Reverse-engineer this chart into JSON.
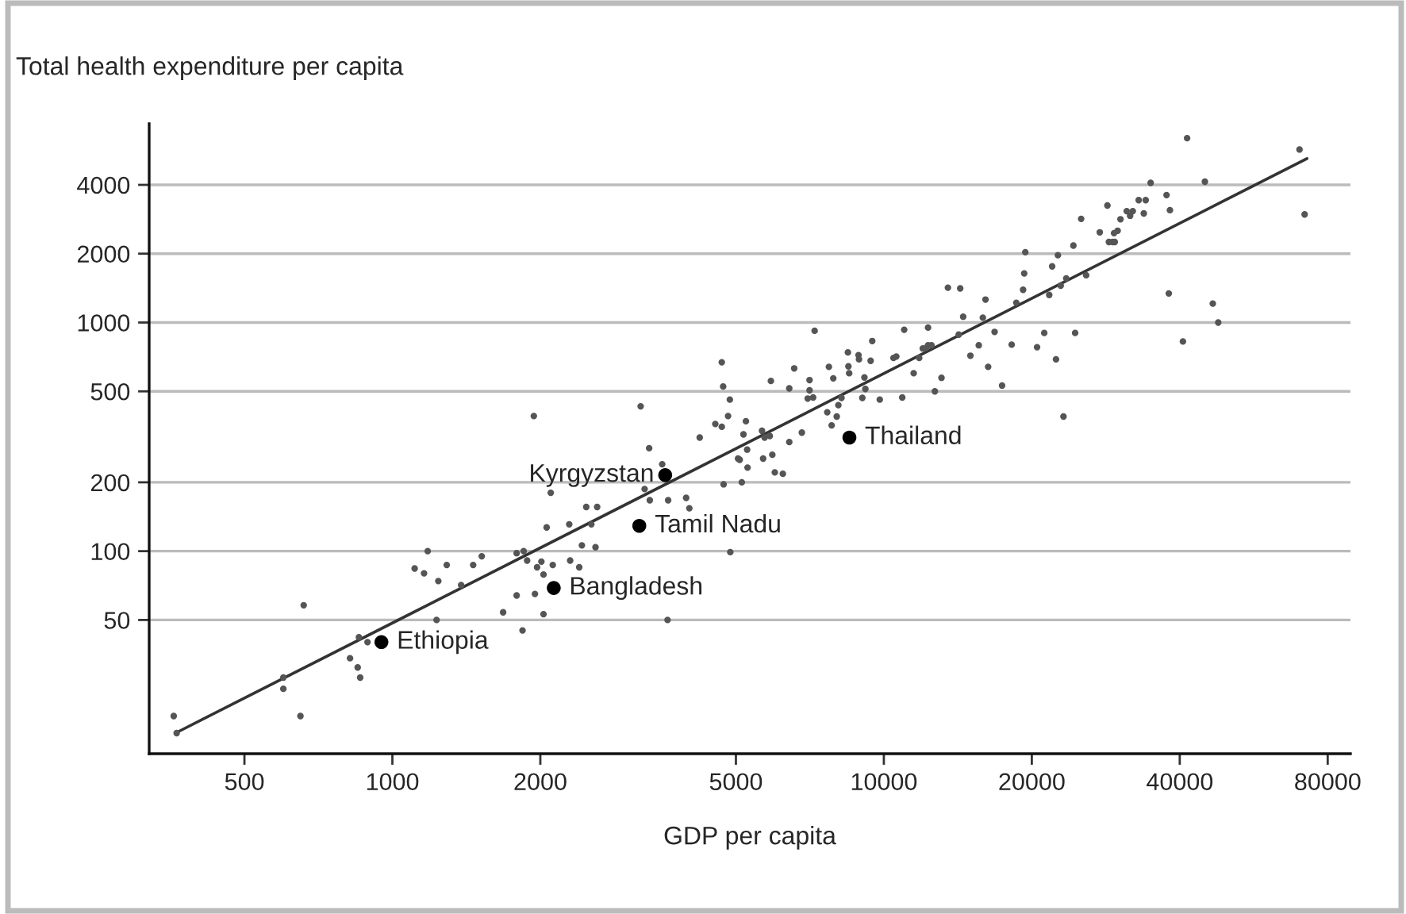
{
  "chart_data": {
    "type": "scatter",
    "ylabel": "Total health expenditure per capita",
    "xlabel": "GDP per capita",
    "log": "xy",
    "grid": "y",
    "marker": "circle",
    "xlim": [
      320,
      89000
    ],
    "ylim": [
      13,
      7400
    ],
    "xticks": [
      500,
      1000,
      2000,
      5000,
      10000,
      20000,
      40000,
      80000
    ],
    "yticks": [
      50,
      100,
      200,
      500,
      1000,
      2000,
      4000
    ],
    "series": [
      {
        "color": "#555555",
        "x": [
          359,
          364,
          600,
          600,
          650,
          660,
          820,
          850,
          860,
          855,
          890,
          1110,
          1160,
          1180,
          1240,
          1290,
          1230,
          1380,
          1460,
          1520,
          1680,
          1790,
          1790,
          1840,
          1850,
          1880,
          1950,
          1970,
          2010,
          2030,
          2030,
          2060,
          2100,
          2120,
          2290,
          2300,
          2400,
          2430,
          2480,
          2540,
          2590,
          2610,
          3260,
          3340,
          3540,
          3640,
          3630,
          3960,
          4020,
          3330,
          1940,
          3200,
          4220,
          4680,
          4710,
          4860,
          4820,
          4540,
          4680,
          5240,
          5180,
          5270,
          5050,
          5280,
          4720,
          5140,
          5650,
          5720,
          5860,
          5680,
          5930,
          6000,
          6230,
          5890,
          6420,
          6570,
          6420,
          6810,
          7060,
          7060,
          7000,
          7180,
          7230,
          7730,
          7890,
          7670,
          7830,
          8020,
          8080,
          8200,
          8450,
          8470,
          8500,
          8880,
          8900,
          9130,
          9170,
          9040,
          9400,
          9470,
          9810,
          10460,
          10600,
          10900,
          11000,
          11500,
          11800,
          12000,
          12200,
          12300,
          12500,
          12300,
          12700,
          13100,
          13500,
          14300,
          14200,
          14500,
          15000,
          15600,
          15900,
          16100,
          16300,
          16800,
          17400,
          18200,
          18600,
          19200,
          19300,
          19400,
          20500,
          21200,
          21700,
          22000,
          22600,
          22400,
          22900,
          23500,
          23200,
          24300,
          24500,
          25200,
          25800,
          27500,
          28500,
          28700,
          29200,
          29500,
          29400,
          29900,
          30300,
          31200,
          31700,
          32100,
          33000,
          34100,
          33800,
          34900,
          37600,
          38200,
          38000,
          40600,
          41400,
          45000,
          46700,
          47900,
          70100,
          71800,
          5090,
          4870
        ],
        "values": [
          19,
          16,
          28,
          25,
          19,
          58,
          34,
          31,
          28,
          42,
          40,
          84,
          80,
          100,
          74,
          87,
          50,
          71,
          87,
          95,
          54,
          64,
          98,
          45,
          100,
          91,
          65,
          85,
          90,
          79,
          53,
          127,
          180,
          87,
          131,
          91,
          85,
          106,
          156,
          131,
          104,
          156,
          187,
          167,
          240,
          167,
          50,
          171,
          154,
          282,
          390,
          430,
          314,
          670,
          525,
          460,
          390,
          360,
          350,
          370,
          324,
          278,
          254,
          232,
          196,
          200,
          336,
          314,
          319,
          254,
          264,
          221,
          218,
          555,
          515,
          630,
          300,
          330,
          560,
          505,
          465,
          470,
          920,
          640,
          570,
          405,
          355,
          388,
          435,
          468,
          740,
          643,
          600,
          720,
          690,
          575,
          512,
          468,
          680,
          830,
          460,
          700,
          710,
          470,
          930,
          600,
          700,
          770,
          775,
          795,
          795,
          950,
          500,
          573,
          1420,
          1410,
          885,
          1060,
          716,
          795,
          1050,
          1260,
          640,
          910,
          530,
          800,
          1220,
          1390,
          1640,
          2030,
          780,
          900,
          1320,
          1760,
          1970,
          690,
          1450,
          1560,
          388,
          2170,
          900,
          2840,
          1610,
          2480,
          3250,
          2250,
          2250,
          2250,
          2460,
          2520,
          2830,
          3070,
          2930,
          3070,
          3430,
          3430,
          3000,
          4080,
          3610,
          3100,
          1340,
          826,
          6400,
          4130,
          1210,
          1000,
          5710,
          2970,
          251,
          99
        ]
      },
      {
        "color": "#000000",
        "x": [
          950,
          2130,
          3180,
          3590,
          8510
        ],
        "values": [
          40,
          69,
          129,
          215,
          314
        ]
      },
      {
        "type": "line",
        "marker": "none",
        "color": "#333333",
        "x": [
          362,
          72600
        ],
        "values": [
          16,
          5210
        ]
      }
    ],
    "annotations": [
      {
        "text": "Kyrgyzstan",
        "x": 3590,
        "y": 215
      },
      {
        "text": "Tamil Nadu",
        "x": 3180,
        "y": 129
      },
      {
        "text": "Thailand",
        "x": 8510,
        "y": 314
      },
      {
        "text": "Bangladesh",
        "x": 2130,
        "y": 69
      },
      {
        "text": "Ethiopia",
        "x": 950,
        "y": 40
      }
    ]
  }
}
